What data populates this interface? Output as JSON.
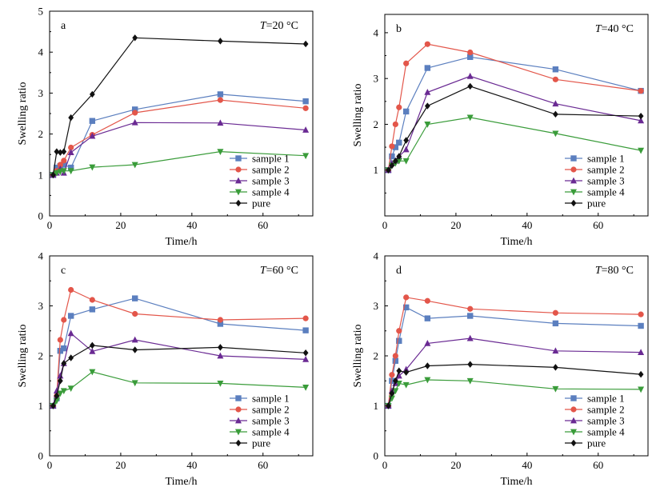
{
  "chart_data": [
    {
      "type": "line",
      "panel_label": "a",
      "temperature_label": {
        "symbol": "T",
        "text": "=20 °C"
      },
      "xlabel": "Time/h",
      "ylabel": "Swelling ratio",
      "xlim": [
        0,
        74
      ],
      "ylim": [
        0,
        5
      ],
      "xticks": [
        "0",
        "20",
        "40",
        "60"
      ],
      "yticks": [
        "0",
        "1",
        "2",
        "3",
        "4",
        "5"
      ],
      "legend_position": "bottom-right",
      "series": [
        {
          "name": "sample 1",
          "color": "#5b7fbf",
          "marker": "square",
          "x": [
            1,
            2,
            3,
            4,
            6,
            12,
            24,
            48,
            72
          ],
          "y": [
            1.0,
            1.18,
            1.22,
            1.25,
            1.18,
            2.32,
            2.6,
            2.97,
            2.8
          ]
        },
        {
          "name": "sample 2",
          "color": "#e3564a",
          "marker": "circle",
          "x": [
            1,
            2,
            3,
            4,
            6,
            12,
            24,
            48,
            72
          ],
          "y": [
            1.0,
            1.1,
            1.25,
            1.35,
            1.67,
            1.98,
            2.52,
            2.83,
            2.63
          ]
        },
        {
          "name": "sample 3",
          "color": "#6a2a93",
          "marker": "triangle-up",
          "x": [
            1,
            2,
            3,
            4,
            6,
            12,
            24,
            48,
            72
          ],
          "y": [
            1.0,
            1.05,
            1.15,
            1.05,
            1.55,
            1.95,
            2.28,
            2.27,
            2.1
          ]
        },
        {
          "name": "sample 4",
          "color": "#3a9c3a",
          "marker": "triangle-down",
          "x": [
            1,
            2,
            3,
            4,
            6,
            12,
            24,
            48,
            72
          ],
          "y": [
            1.0,
            1.05,
            1.08,
            1.1,
            1.1,
            1.19,
            1.25,
            1.57,
            1.47
          ]
        },
        {
          "name": "pure",
          "color": "#111111",
          "marker": "diamond",
          "x": [
            1,
            2,
            3,
            4,
            6,
            12,
            24,
            48,
            72
          ],
          "y": [
            1.0,
            1.57,
            1.55,
            1.57,
            2.4,
            2.97,
            4.35,
            4.27,
            4.2
          ]
        }
      ]
    },
    {
      "type": "line",
      "panel_label": "b",
      "temperature_label": {
        "symbol": "T",
        "text": "=40 °C"
      },
      "xlabel": "Time/h",
      "ylabel": "Swelling ratio",
      "xlim": [
        0,
        74
      ],
      "ylim": [
        0,
        4.4
      ],
      "xticks": [
        "0",
        "20",
        "40",
        "60"
      ],
      "yticks": [
        "1",
        "2",
        "3",
        "4"
      ],
      "legend_position": "bottom-right",
      "series": [
        {
          "name": "sample 1",
          "color": "#5b7fbf",
          "marker": "square",
          "x": [
            1,
            2,
            3,
            4,
            6,
            12,
            24,
            48,
            72
          ],
          "y": [
            1.0,
            1.3,
            1.5,
            1.6,
            2.28,
            3.23,
            3.47,
            3.2,
            2.73
          ]
        },
        {
          "name": "sample 2",
          "color": "#e3564a",
          "marker": "circle",
          "x": [
            1,
            2,
            3,
            4,
            6,
            12,
            24,
            48,
            72
          ],
          "y": [
            1.0,
            1.52,
            2.0,
            2.37,
            3.33,
            3.75,
            3.57,
            2.98,
            2.73
          ]
        },
        {
          "name": "sample 3",
          "color": "#6a2a93",
          "marker": "triangle-up",
          "x": [
            1,
            2,
            3,
            4,
            6,
            12,
            24,
            48,
            72
          ],
          "y": [
            1.0,
            1.15,
            1.2,
            1.3,
            1.45,
            2.7,
            3.05,
            2.45,
            2.08
          ]
        },
        {
          "name": "sample 4",
          "color": "#3a9c3a",
          "marker": "triangle-down",
          "x": [
            1,
            2,
            3,
            4,
            6,
            12,
            24,
            48,
            72
          ],
          "y": [
            1.0,
            1.1,
            1.15,
            1.2,
            1.2,
            2.0,
            2.15,
            1.8,
            1.43
          ]
        },
        {
          "name": "pure",
          "color": "#111111",
          "marker": "diamond",
          "x": [
            1,
            2,
            3,
            4,
            6,
            12,
            24,
            48,
            72
          ],
          "y": [
            1.0,
            1.1,
            1.2,
            1.3,
            1.65,
            2.4,
            2.83,
            2.22,
            2.18
          ]
        }
      ]
    },
    {
      "type": "line",
      "panel_label": "c",
      "temperature_label": {
        "symbol": "T",
        "text": "=60 °C"
      },
      "xlabel": "Time/h",
      "ylabel": "Swelling ratio",
      "xlim": [
        0,
        74
      ],
      "ylim": [
        0,
        4
      ],
      "xticks": [
        "0",
        "20",
        "40",
        "60"
      ],
      "yticks": [
        "0",
        "1",
        "2",
        "3",
        "4"
      ],
      "legend_position": "bottom-right",
      "series": [
        {
          "name": "sample 1",
          "color": "#5b7fbf",
          "marker": "square",
          "x": [
            1,
            2,
            3,
            4,
            6,
            12,
            24,
            48,
            72
          ],
          "y": [
            1.0,
            1.15,
            2.1,
            2.15,
            2.8,
            2.93,
            3.15,
            2.64,
            2.51
          ]
        },
        {
          "name": "sample 2",
          "color": "#e3564a",
          "marker": "circle",
          "x": [
            1,
            2,
            3,
            4,
            6,
            12,
            24,
            48,
            72
          ],
          "y": [
            1.0,
            1.2,
            2.32,
            2.72,
            3.32,
            3.12,
            2.84,
            2.72,
            2.75
          ]
        },
        {
          "name": "sample 3",
          "color": "#6a2a93",
          "marker": "triangle-up",
          "x": [
            1,
            2,
            3,
            4,
            6,
            12,
            24,
            48,
            72
          ],
          "y": [
            1.0,
            1.3,
            1.6,
            1.85,
            2.45,
            2.09,
            2.32,
            2.0,
            1.93
          ]
        },
        {
          "name": "sample 4",
          "color": "#3a9c3a",
          "marker": "triangle-down",
          "x": [
            1,
            2,
            3,
            4,
            6,
            12,
            24,
            48,
            72
          ],
          "y": [
            1.0,
            1.1,
            1.25,
            1.3,
            1.35,
            1.68,
            1.46,
            1.45,
            1.37
          ]
        },
        {
          "name": "pure",
          "color": "#111111",
          "marker": "diamond",
          "x": [
            1,
            2,
            3,
            4,
            6,
            12,
            24,
            48,
            72
          ],
          "y": [
            1.0,
            1.2,
            1.5,
            1.85,
            1.96,
            2.21,
            2.12,
            2.17,
            2.06
          ]
        }
      ]
    },
    {
      "type": "line",
      "panel_label": "d",
      "temperature_label": {
        "symbol": "T",
        "text": "=80 °C"
      },
      "xlabel": "Time/h",
      "ylabel": "Swelling ratio",
      "xlim": [
        0,
        74
      ],
      "ylim": [
        0,
        4
      ],
      "xticks": [
        "0",
        "20",
        "40",
        "60"
      ],
      "yticks": [
        "0",
        "1",
        "2",
        "3",
        "4"
      ],
      "legend_position": "bottom-right",
      "series": [
        {
          "name": "sample 1",
          "color": "#5b7fbf",
          "marker": "square",
          "x": [
            1,
            2,
            3,
            4,
            6,
            12,
            24,
            48,
            72
          ],
          "y": [
            1.0,
            1.5,
            1.9,
            2.3,
            2.97,
            2.75,
            2.8,
            2.65,
            2.6
          ]
        },
        {
          "name": "sample 2",
          "color": "#e3564a",
          "marker": "circle",
          "x": [
            1,
            2,
            3,
            4,
            6,
            12,
            24,
            48,
            72
          ],
          "y": [
            1.0,
            1.62,
            2.0,
            2.5,
            3.17,
            3.1,
            2.94,
            2.86,
            2.83
          ]
        },
        {
          "name": "sample 3",
          "color": "#6a2a93",
          "marker": "triangle-up",
          "x": [
            1,
            2,
            3,
            4,
            6,
            12,
            24,
            48,
            72
          ],
          "y": [
            1.0,
            1.3,
            1.45,
            1.6,
            1.73,
            2.25,
            2.35,
            2.1,
            2.07
          ]
        },
        {
          "name": "sample 4",
          "color": "#3a9c3a",
          "marker": "triangle-down",
          "x": [
            1,
            2,
            3,
            4,
            6,
            12,
            24,
            48,
            72
          ],
          "y": [
            1.0,
            1.15,
            1.3,
            1.45,
            1.42,
            1.52,
            1.5,
            1.34,
            1.33
          ]
        },
        {
          "name": "pure",
          "color": "#111111",
          "marker": "diamond",
          "x": [
            1,
            2,
            3,
            4,
            6,
            12,
            24,
            48,
            72
          ],
          "y": [
            1.0,
            1.25,
            1.5,
            1.7,
            1.67,
            1.8,
            1.83,
            1.77,
            1.63
          ]
        }
      ]
    }
  ]
}
